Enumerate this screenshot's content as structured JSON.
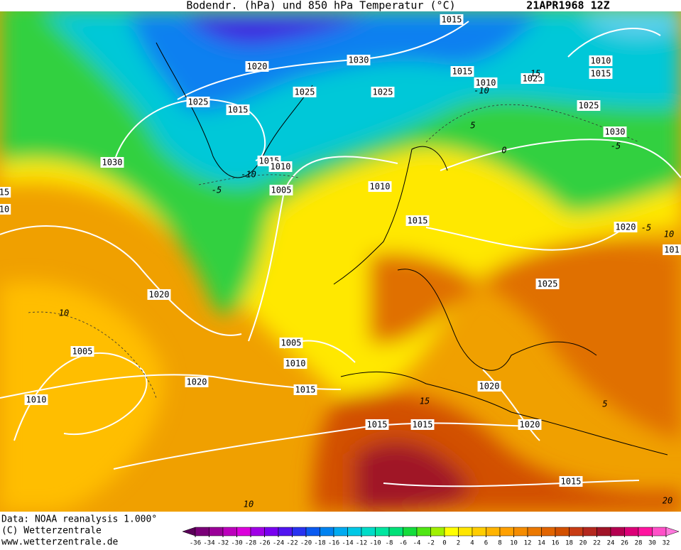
{
  "header": {
    "title": "Bodendr. (hPa) und 850 hPa Temperatur (°C)",
    "date": "21APR1968 12Z"
  },
  "isobar_labels": [
    "1015",
    "1030",
    "1020",
    "1025",
    "1025",
    "1015",
    "1010",
    "1025",
    "1015",
    "1030",
    "1015",
    "1010",
    "1005",
    "1010",
    "1015",
    "1010",
    "1015",
    "1025",
    "1030",
    "1020",
    "1025",
    "1020",
    "1005",
    "1005",
    "1010",
    "1015",
    "1020",
    "1010",
    "1020",
    "1015",
    "1015",
    "1020",
    "1015",
    "15",
    "10",
    "101",
    "102ɔ"
  ],
  "temperature_labels": [
    "-10",
    "15",
    "-5",
    "0",
    "-10",
    "-5",
    "10",
    "15",
    "5",
    "10",
    "5",
    "-5",
    "10",
    "20"
  ],
  "footer": {
    "source": "Data: NOAA reanalysis 1.000°",
    "copyright": "(C) Wetterzentrale",
    "url": "www.wetterzentrale.de"
  },
  "legend": {
    "ticks": [
      -36,
      -34,
      -32,
      -30,
      -28,
      -26,
      -24,
      -22,
      -20,
      -18,
      -16,
      -14,
      -12,
      -10,
      -8,
      -6,
      -4,
      -2,
      0,
      2,
      4,
      6,
      8,
      10,
      12,
      14,
      16,
      18,
      20,
      22,
      24,
      26,
      28,
      30,
      32
    ],
    "colors": [
      "#5a0058",
      "#7a0078",
      "#9a0098",
      "#bc00bc",
      "#dc00dc",
      "#a000e6",
      "#7800f0",
      "#5014f0",
      "#2832f0",
      "#0a5af0",
      "#0082f0",
      "#00aaf0",
      "#00c8e6",
      "#00dcc8",
      "#00e6a0",
      "#00e178",
      "#14dc3c",
      "#50e614",
      "#a0f000",
      "#ffff00",
      "#ffe600",
      "#ffcd00",
      "#ffb400",
      "#ffa000",
      "#f58c00",
      "#eb7800",
      "#e16400",
      "#d25000",
      "#c83c14",
      "#b4281e",
      "#a01428",
      "#b40050",
      "#dc0078",
      "#ff14a0",
      "#ff50c8",
      "#ff78dc"
    ]
  }
}
